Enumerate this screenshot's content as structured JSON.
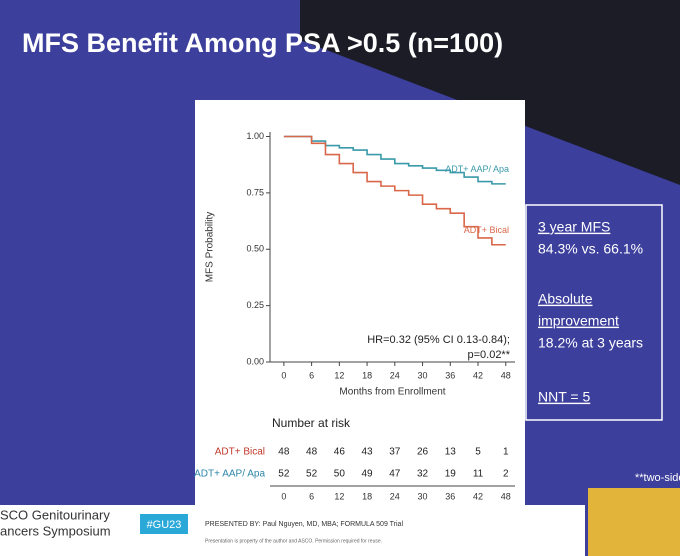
{
  "slide": {
    "title": "MFS Benefit Among PSA >0.5 (n=100)",
    "summary": [
      "3 year MFS",
      "84.3% vs. 66.1%",
      "Absolute",
      "improvement",
      "18.2% at 3 years",
      "NNT = 5"
    ],
    "footnote": "**two-side",
    "footer": {
      "society": [
        "SCO Genitourinary",
        "ancers Symposium"
      ],
      "hashtag": "#GU23",
      "presenter": "PRESENTED BY: Paul Nguyen, MD, MBA; FORMULA 509 Trial",
      "notice": "Presentation is property of the author and ASCO. Permission required for reuse."
    }
  },
  "chart_data": {
    "type": "line",
    "step": true,
    "x_label": "Months from Enrollment",
    "y_label": "MFS Probability",
    "annotation": [
      "HR=0.32 (95% CI 0.13-0.84);",
      "p=0.02**"
    ],
    "x": [
      0,
      3,
      6,
      9,
      12,
      15,
      18,
      21,
      24,
      27,
      30,
      33,
      36,
      39,
      42,
      45,
      48
    ],
    "series": [
      {
        "name": "ADT+ AAP/ Apa",
        "color": "#3a9aaa",
        "values": [
          1,
          1,
          0.98,
          0.96,
          0.95,
          0.94,
          0.92,
          0.9,
          0.88,
          0.87,
          0.86,
          0.85,
          0.84,
          0.82,
          0.8,
          0.79,
          0.79
        ]
      },
      {
        "name": "ADT+ Bical",
        "color": "#d9674a",
        "values": [
          1,
          1,
          0.97,
          0.92,
          0.88,
          0.84,
          0.8,
          0.78,
          0.76,
          0.74,
          0.7,
          0.68,
          0.66,
          0.6,
          0.55,
          0.52,
          0.52
        ]
      }
    ],
    "xlim": [
      -3,
      50
    ],
    "ylim": [
      0,
      1.02
    ],
    "xticks": [
      0,
      6,
      12,
      18,
      24,
      30,
      36,
      42,
      48
    ],
    "yticks": [
      {
        "value": 0,
        "label": "0.00"
      },
      {
        "value": 0.25,
        "label": "0.25"
      },
      {
        "value": 0.5,
        "label": "0.50"
      },
      {
        "value": 0.75,
        "label": "0.75"
      },
      {
        "value": 1,
        "label": "1.00"
      }
    ],
    "risk_table": {
      "title": "Number at risk",
      "times": [
        0,
        6,
        12,
        18,
        24,
        30,
        36,
        42,
        48
      ],
      "rows": [
        {
          "label": "ADT+ Bical",
          "color": "#c0392b",
          "values": [
            48,
            48,
            46,
            43,
            37,
            26,
            13,
            5,
            1
          ]
        },
        {
          "label": "ADT+ AAP/ Apa",
          "color": "#2e86a8",
          "values": [
            52,
            52,
            50,
            49,
            47,
            32,
            19,
            11,
            2
          ]
        }
      ]
    }
  }
}
